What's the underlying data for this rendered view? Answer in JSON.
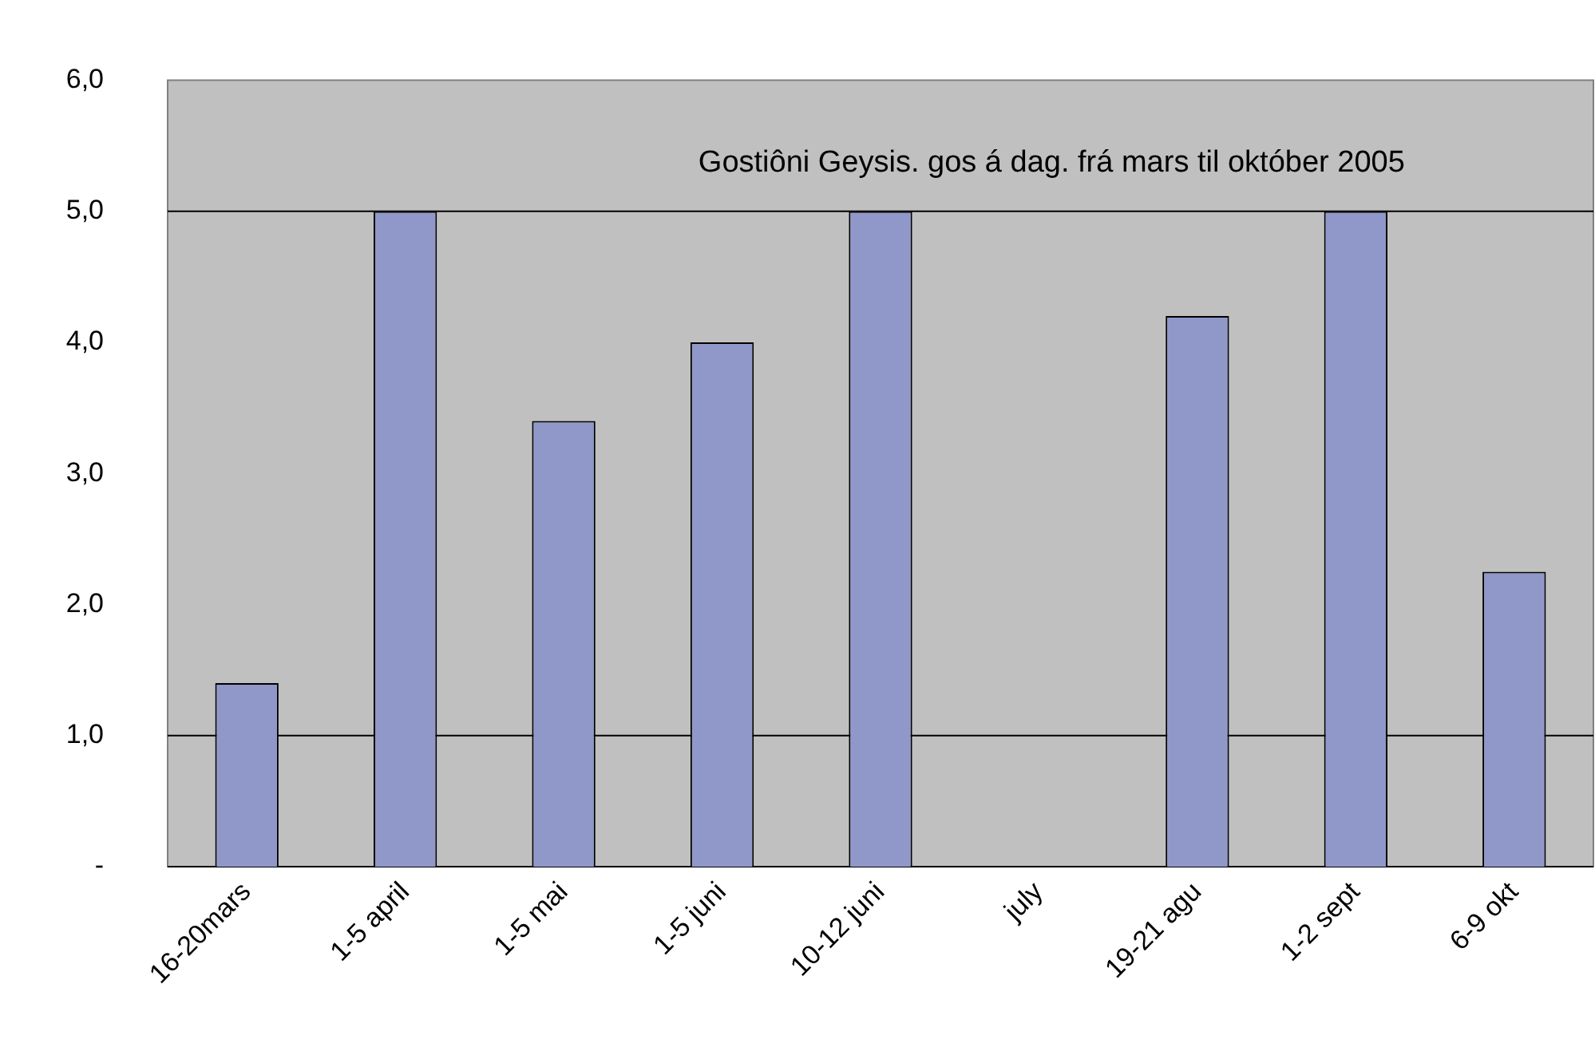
{
  "chart_data": {
    "type": "bar",
    "title": "Gostiôni Geysis. gos á dag. frá mars til október 2005",
    "categories": [
      "16-20mars",
      "1-5 april",
      "1-5 mai",
      "1-5 juni",
      "10-12 juni",
      "july",
      "19-21 agu",
      "1-2 sept",
      "6-9 okt"
    ],
    "values": [
      1.4,
      5.0,
      3.4,
      4.0,
      5.0,
      null,
      4.2,
      5.0,
      2.25
    ],
    "color": "#8f98c8",
    "ylim": [
      0,
      6
    ],
    "yticks": [
      {
        "value": 0,
        "label": "-"
      },
      {
        "value": 1,
        "label": "1,0"
      },
      {
        "value": 2,
        "label": "2,0"
      },
      {
        "value": 3,
        "label": "3,0"
      },
      {
        "value": 4,
        "label": "4,0"
      },
      {
        "value": 5,
        "label": "5,0"
      },
      {
        "value": 6,
        "label": "6,0"
      }
    ],
    "grid": false,
    "legend": false,
    "ref_lines": [
      {
        "axis": "y",
        "value": 1,
        "color": "#000000"
      },
      {
        "axis": "y",
        "value": 5,
        "color": "#000000"
      }
    ]
  }
}
